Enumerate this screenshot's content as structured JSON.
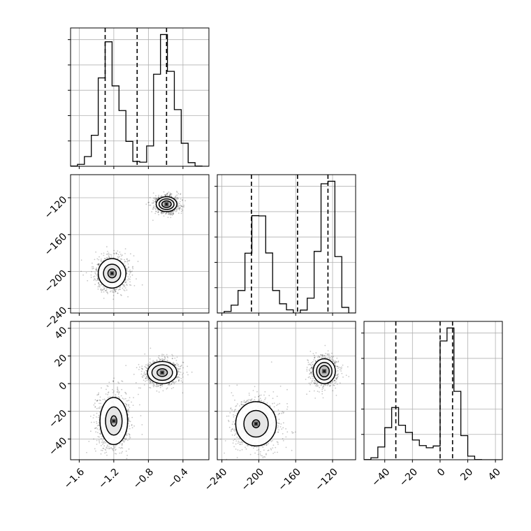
{
  "chart_data": {
    "type": "corner",
    "grid": true,
    "variables": [
      "",
      "",
      ""
    ],
    "ranges": [
      [
        -1.7,
        -0.1
      ],
      [
        -245,
        -95
      ],
      [
        -55,
        45
      ]
    ],
    "xticks": [
      {
        "values": [
          -1.6,
          -1.2,
          -0.8,
          -0.4
        ],
        "labels": [
          "−1.6",
          "−1.2",
          "−0.8",
          "−0.4"
        ]
      },
      {
        "values": [
          -240,
          -200,
          -160,
          -120
        ],
        "labels": [
          "−240",
          "−200",
          "−160",
          "−120"
        ]
      },
      {
        "values": [
          -40,
          -20,
          0,
          20,
          40
        ],
        "labels": [
          "−40",
          "−20",
          "0",
          "20",
          "40"
        ]
      }
    ],
    "yticks": [
      {
        "values": [],
        "labels": []
      },
      {
        "values": [
          -240,
          -200,
          -160,
          -120
        ],
        "labels": [
          "−240",
          "−200",
          "−160",
          "−120"
        ]
      },
      {
        "values": [
          -40,
          -20,
          0,
          20,
          40
        ],
        "labels": [
          "−40",
          "−20",
          "0",
          "20",
          "40"
        ]
      }
    ],
    "quantiles": [
      [
        -1.3,
        -0.93,
        -0.59
      ],
      [
        -208,
        -158,
        -125
      ],
      [
        -32,
        0,
        9
      ]
    ],
    "histograms": [
      {
        "edges": [
          -1.7,
          -1.62,
          -1.54,
          -1.46,
          -1.38,
          -1.3,
          -1.22,
          -1.14,
          -1.06,
          -0.98,
          -0.9,
          -0.82,
          -0.74,
          -0.66,
          -0.58,
          -0.5,
          -0.42,
          -0.34,
          -0.26,
          -0.18,
          -0.1
        ],
        "counts": [
          1,
          8,
          40,
          128,
          365,
          514,
          332,
          230,
          103,
          20,
          17,
          84,
          380,
          544,
          392,
          234,
          95,
          15,
          1,
          0
        ]
      },
      {
        "edges": [
          -245,
          -237.5,
          -230,
          -222.5,
          -215,
          -207.5,
          -200,
          -192.5,
          -185,
          -177.5,
          -170,
          -162.5,
          -155,
          -147.5,
          -140,
          -132.5,
          -125,
          -117.5,
          -110,
          -102.5,
          -95
        ],
        "counts": [
          0,
          7,
          35,
          100,
          266,
          433,
          432,
          267,
          100,
          41,
          14,
          0,
          13,
          66,
          274,
          575,
          586,
          251,
          25,
          0
        ]
      },
      {
        "edges": [
          -55,
          -50,
          -45,
          -40,
          -35,
          -30,
          -25,
          -20,
          -15,
          -10,
          -5,
          0,
          5,
          10,
          15,
          20,
          25,
          30,
          35,
          40,
          45
        ],
        "counts": [
          1,
          10,
          64,
          161,
          262,
          173,
          137,
          99,
          71,
          60,
          69,
          596,
          661,
          343,
          121,
          18,
          1,
          0,
          0,
          0
        ]
      }
    ],
    "pairs": [
      {
        "row": 1,
        "col": 0,
        "clusters": [
          {
            "mx": -0.59,
            "my": -127,
            "rx": 0.12,
            "ry": 8,
            "levels": [
              1,
              0.72,
              0.45
            ]
          },
          {
            "mx": -1.22,
            "my": -202,
            "rx": 0.16,
            "ry": 16,
            "levels": [
              1,
              0.62,
              0.3
            ]
          }
        ]
      },
      {
        "row": 2,
        "col": 0,
        "clusters": [
          {
            "mx": -0.64,
            "my": 8,
            "rx": 0.17,
            "ry": 8,
            "levels": [
              1,
              0.7,
              0.35
            ]
          },
          {
            "mx": -1.2,
            "my": -27,
            "rx": 0.16,
            "ry": 17,
            "levels": [
              1,
              0.6,
              0.22
            ]
          }
        ]
      },
      {
        "row": 2,
        "col": 1,
        "clusters": [
          {
            "mx": -129,
            "my": 9,
            "rx": 12,
            "ry": 9,
            "levels": [
              1,
              0.7,
              0.45
            ]
          },
          {
            "mx": -203,
            "my": -29,
            "rx": 22,
            "ry": 16,
            "levels": [
              1,
              0.6,
              0.18
            ]
          }
        ]
      }
    ]
  }
}
